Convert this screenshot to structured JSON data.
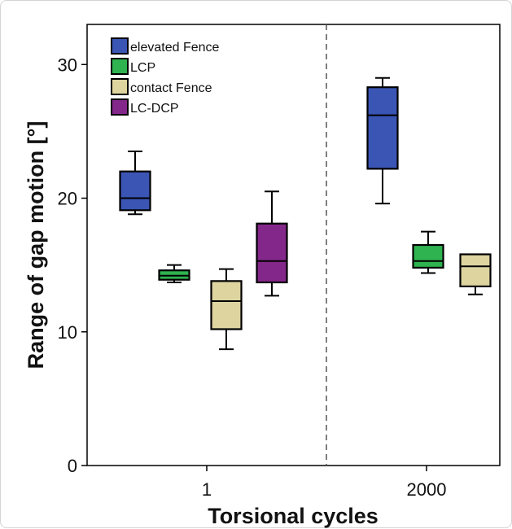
{
  "chart_data": {
    "type": "box",
    "xlabel": "Torsional cycles",
    "ylabel": "Range of gap motion [°]",
    "ylim": [
      0,
      33
    ],
    "yticks": [
      0,
      10,
      20,
      30
    ],
    "categories": [
      "1",
      "2000"
    ],
    "legend_position": "top-left",
    "grid": false,
    "separator": "dashed vertical line between categories",
    "series": [
      {
        "name": "elevated Fence",
        "color": "#3a55b4",
        "boxes": [
          {
            "category": "1",
            "min": 18.8,
            "q1": 19.1,
            "median": 20.0,
            "q3": 22.0,
            "max": 23.5
          },
          {
            "category": "2000",
            "min": 19.6,
            "q1": 22.2,
            "median": 26.2,
            "q3": 28.3,
            "max": 29.0
          }
        ]
      },
      {
        "name": "LCP",
        "color": "#2fb350",
        "boxes": [
          {
            "category": "1",
            "min": 13.7,
            "q1": 13.9,
            "median": 14.2,
            "q3": 14.6,
            "max": 15.0
          },
          {
            "category": "2000",
            "min": 14.4,
            "q1": 14.8,
            "median": 15.3,
            "q3": 16.5,
            "max": 17.5
          }
        ]
      },
      {
        "name": "contact Fence",
        "color": "#ddd4a0",
        "boxes": [
          {
            "category": "1",
            "min": 8.7,
            "q1": 10.2,
            "median": 12.3,
            "q3": 13.8,
            "max": 14.7
          },
          {
            "category": "2000",
            "min": 12.8,
            "q1": 13.4,
            "median": 14.9,
            "q3": 15.8,
            "max": 15.8
          }
        ]
      },
      {
        "name": "LC-DCP",
        "color": "#84278a",
        "boxes": [
          {
            "category": "1",
            "min": 12.7,
            "q1": 13.7,
            "median": 15.3,
            "q3": 18.1,
            "max": 20.5
          }
        ]
      }
    ]
  }
}
